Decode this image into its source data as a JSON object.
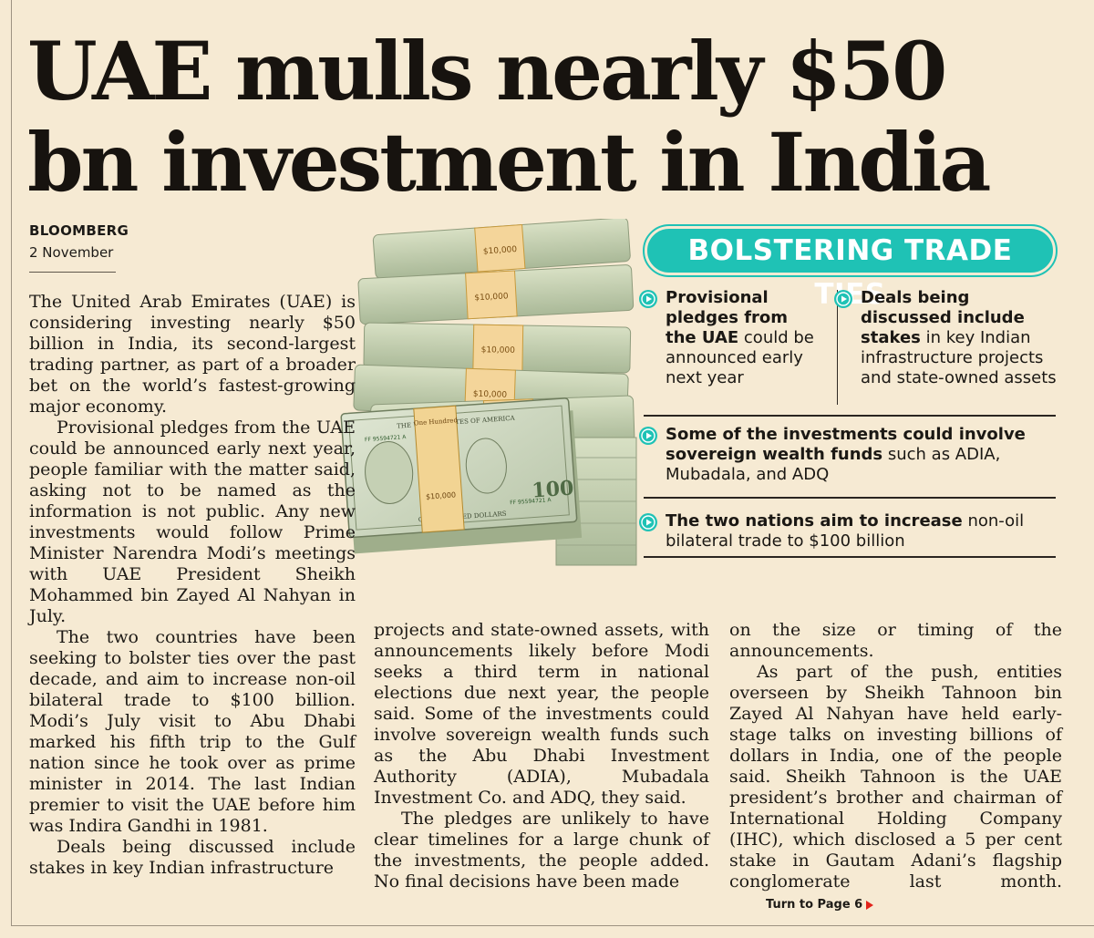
{
  "headline": "UAE mulls nearly $50 bn investment in India",
  "byline": {
    "source": "BLOOMBERG",
    "date": "2 November"
  },
  "body": {
    "col1": [
      "The United Arab Emirates (UAE) is considering investing nearly $50 billion in India, its second-largest trading partner, as part of a broader bet on the world’s fastest-growing major economy.",
      "Provisional pledges from the UAE could be announced early next year, people familiar with the matter said, asking not to be named as the information is not public. Any new investments would follow Prime Minister Narendra Modi’s meetings with UAE President Sheikh Mohammed bin Zayed Al Nahyan in July.",
      "The two countries have been seeking to bolster ties over the past decade, and aim to increase non-oil bilateral trade to $100 billion. Modi’s July visit to Abu Dhabi marked his fifth trip to the Gulf nation since he took over as prime minister in 2014. The last Indian premier to visit the UAE before him was Indira Gandhi in 1981.",
      "Deals being discussed include stakes in key Indian infrastructure"
    ],
    "col2": [
      "projects and state-owned assets, with announcements likely before Modi seeks a third term in national elections due next year, the people said. Some of the investments could involve sovereign wealth funds such as the Abu Dhabi Investment Authority (ADIA), Mubadala Investment Co. and ADQ, they said.",
      "The pledges are unlikely to have clear timelines for a large chunk of the investments, the people added. No final decisions have been made"
    ],
    "col3": [
      "on the size or timing of the announcements.",
      "As part of the push, entities overseen by Sheikh Tahnoon bin Zayed Al Nahyan have held early-stage talks on investing billions of dollars in India, one of the people said. Sheikh Tahnoon is the UAE president’s brother and chairman of International Holding Company (IHC), which disclosed a 5 per cent stake in Gautam Adani’s flagship conglomerate last month."
    ],
    "turn_to": "Turn to Page 6"
  },
  "sidebar": {
    "title": "BOLSTERING TRADE TIES",
    "accent_color": "#1fc2b5",
    "bullets": [
      {
        "bold": "Provisional pledges from the UAE",
        "rest": " could be announced early next year"
      },
      {
        "bold": "Deals being discussed include stakes",
        "rest": " in key Indian infrastructure projects and state-owned assets"
      },
      {
        "bold": "Some of the investments could involve sovereign wealth funds",
        "rest": " such as ADIA, Mubadala, and ADQ"
      },
      {
        "bold": "The two nations aim to increase",
        "rest": " non-oil bilateral trade to $100 billion"
      }
    ]
  },
  "image": {
    "icon": "dollar-banknote-stacks-icon",
    "band_text": "$10,000",
    "bill_serial": "FF 95594721 A",
    "bill_denomination": "100",
    "bill_header": "THE UNITED STATES OF AMERICA",
    "bill_footer": "ONE HUNDRED DOLLARS",
    "wrap_text": "One Hundred"
  }
}
